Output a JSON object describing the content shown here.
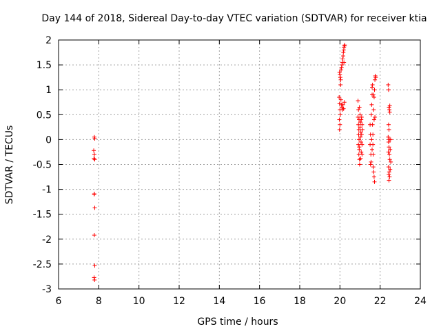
{
  "chart_data": {
    "type": "scatter",
    "title": "Day 144 of 2018, Sidereal Day-to-day VTEC variation (SDTVAR) for receiver ktia",
    "xlabel": "GPS time / hours",
    "ylabel": "SDTVAR / TECUs",
    "xlim": [
      6,
      24
    ],
    "ylim": [
      -3,
      2
    ],
    "x_ticks": [
      6,
      8,
      10,
      12,
      14,
      16,
      18,
      20,
      22,
      24
    ],
    "x_tick_labels": [
      "6",
      "8",
      "10",
      "12",
      "14",
      "16",
      "18",
      "20",
      "22",
      "24"
    ],
    "y_ticks": [
      -3,
      -2.5,
      -2,
      -1.5,
      -1,
      -0.5,
      0,
      0.5,
      1,
      1.5,
      2
    ],
    "y_tick_labels": [
      "-3",
      "-2.5",
      "-2",
      "-1.5",
      "-1",
      "-0.5",
      "0",
      "0.5",
      "1",
      "1.5",
      "2"
    ],
    "grid": true,
    "marker": "+",
    "color": "#ff0000",
    "series": [
      {
        "name": "SDTVAR",
        "points": [
          [
            7.78,
            0.05
          ],
          [
            7.8,
            0.02
          ],
          [
            7.75,
            -0.22
          ],
          [
            7.78,
            -0.3
          ],
          [
            7.76,
            -0.38
          ],
          [
            7.8,
            -0.4
          ],
          [
            7.78,
            -1.09
          ],
          [
            7.77,
            -1.1
          ],
          [
            7.8,
            -1.37
          ],
          [
            7.78,
            -1.92
          ],
          [
            7.8,
            -2.53
          ],
          [
            7.77,
            -2.77
          ],
          [
            7.79,
            -2.82
          ],
          [
            19.96,
            0.85
          ],
          [
            19.98,
            0.72
          ],
          [
            20.0,
            0.6
          ],
          [
            20.02,
            0.5
          ],
          [
            19.97,
            0.4
          ],
          [
            20.0,
            0.3
          ],
          [
            19.98,
            0.2
          ],
          [
            20.0,
            1.3
          ],
          [
            20.02,
            1.25
          ],
          [
            19.98,
            1.35
          ],
          [
            20.04,
            1.2
          ],
          [
            20.06,
            1.4
          ],
          [
            20.03,
            1.1
          ],
          [
            20.05,
            0.8
          ],
          [
            20.08,
            0.7
          ],
          [
            20.1,
            0.65
          ],
          [
            20.12,
            0.6
          ],
          [
            20.15,
            0.7
          ],
          [
            20.18,
            0.62
          ],
          [
            20.1,
            1.5
          ],
          [
            20.12,
            1.55
          ],
          [
            20.14,
            1.62
          ],
          [
            20.16,
            1.68
          ],
          [
            20.2,
            1.55
          ],
          [
            20.08,
            1.45
          ],
          [
            20.17,
            1.75
          ],
          [
            20.2,
            1.85
          ],
          [
            20.22,
            1.88
          ],
          [
            20.24,
            1.9
          ],
          [
            20.19,
            1.8
          ],
          [
            20.22,
            0.75
          ],
          [
            20.9,
            0.78
          ],
          [
            20.92,
            0.6
          ],
          [
            20.9,
            0.45
          ],
          [
            20.95,
            0.4
          ],
          [
            20.92,
            0.3
          ],
          [
            20.94,
            0.2
          ],
          [
            20.93,
            0.1
          ],
          [
            20.95,
            0.0
          ],
          [
            20.92,
            -0.1
          ],
          [
            20.96,
            -0.2
          ],
          [
            20.94,
            -0.3
          ],
          [
            20.97,
            -0.4
          ],
          [
            20.98,
            -0.5
          ],
          [
            21.0,
            0.5
          ],
          [
            21.02,
            0.35
          ],
          [
            21.0,
            0.25
          ],
          [
            21.04,
            0.15
          ],
          [
            21.02,
            0.05
          ],
          [
            21.05,
            -0.05
          ],
          [
            21.06,
            -0.25
          ],
          [
            21.08,
            0.45
          ],
          [
            21.1,
            0.3
          ],
          [
            21.08,
            0.1
          ],
          [
            21.1,
            -0.1
          ],
          [
            21.12,
            0.2
          ],
          [
            21.1,
            -0.3
          ],
          [
            20.97,
            0.65
          ],
          [
            21.03,
            -0.38
          ],
          [
            21.06,
            0.4
          ],
          [
            20.96,
            -0.15
          ],
          [
            21.5,
            0.3
          ],
          [
            21.52,
            0.1
          ],
          [
            21.5,
            -0.1
          ],
          [
            21.54,
            -0.3
          ],
          [
            21.52,
            -0.5
          ],
          [
            21.55,
            -0.45
          ],
          [
            21.56,
            0.5
          ],
          [
            21.58,
            0.7
          ],
          [
            21.6,
            0.9
          ],
          [
            21.6,
            1.05
          ],
          [
            21.62,
            0.3
          ],
          [
            21.64,
            0.1
          ],
          [
            21.64,
            -0.1
          ],
          [
            21.66,
            -0.3
          ],
          [
            21.66,
            -0.55
          ],
          [
            21.68,
            -0.65
          ],
          [
            21.7,
            -0.75
          ],
          [
            21.72,
            -0.85
          ],
          [
            21.68,
            0.6
          ],
          [
            21.7,
            0.85
          ],
          [
            21.72,
            1.0
          ],
          [
            21.74,
            1.2
          ],
          [
            21.76,
            1.28
          ],
          [
            21.78,
            1.25
          ],
          [
            21.62,
            1.1
          ],
          [
            21.66,
            0.9
          ],
          [
            21.7,
            0.4
          ],
          [
            21.74,
            0.45
          ],
          [
            21.58,
            0.0
          ],
          [
            21.6,
            -0.2
          ],
          [
            22.4,
            1.1
          ],
          [
            22.42,
            1.0
          ],
          [
            22.44,
            0.65
          ],
          [
            22.46,
            0.6
          ],
          [
            22.48,
            0.55
          ],
          [
            22.42,
            0.3
          ],
          [
            22.44,
            0.2
          ],
          [
            22.4,
            0.05
          ],
          [
            22.42,
            -0.05
          ],
          [
            22.44,
            -0.15
          ],
          [
            22.46,
            -0.3
          ],
          [
            22.48,
            -0.4
          ],
          [
            22.42,
            -0.55
          ],
          [
            22.45,
            -0.65
          ],
          [
            22.47,
            -0.75
          ],
          [
            22.44,
            -0.82
          ],
          [
            22.5,
            -0.6
          ],
          [
            22.52,
            0.0
          ],
          [
            22.46,
            0.0
          ],
          [
            22.5,
            -0.2
          ],
          [
            22.53,
            -0.45
          ],
          [
            22.48,
            0.68
          ],
          [
            22.41,
            -0.25
          ],
          [
            22.43,
            -0.7
          ]
        ]
      }
    ]
  }
}
